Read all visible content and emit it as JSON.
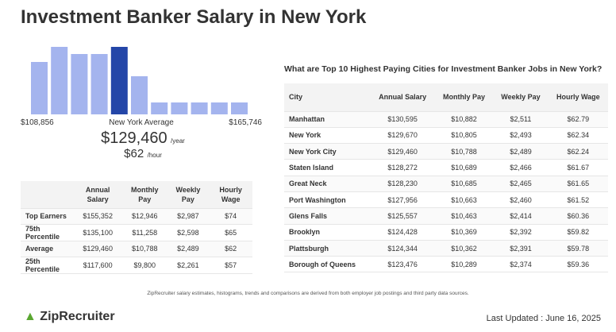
{
  "header": {
    "title": "Investment Banker Salary in New York"
  },
  "histogram": {
    "values": [
      66,
      85,
      76,
      76,
      85,
      48,
      15,
      15,
      15,
      15,
      15
    ],
    "highlight": 4,
    "color": "#a4b4ee",
    "highlight_color": "#2446a8",
    "min_label": "$108,856",
    "average_label": "New York Average",
    "max_label": "$165,746"
  },
  "summary": {
    "yearly": "$129,460",
    "yearly_unit": "/year",
    "hourly": "$62",
    "hourly_unit": "/hour"
  },
  "percentile_table": {
    "columns": [
      "",
      "Annual Salary",
      "Monthly Pay",
      "Weekly Pay",
      "Hourly Wage"
    ],
    "rows": [
      [
        "Top Earners",
        "$155,352",
        "$12,946",
        "$2,987",
        "$74"
      ],
      [
        "75th Percentile",
        "$135,100",
        "$11,258",
        "$2,598",
        "$65"
      ],
      [
        "Average",
        "$129,460",
        "$10,788",
        "$2,489",
        "$62"
      ],
      [
        "25th Percentile",
        "$117,600",
        "$9,800",
        "$2,261",
        "$57"
      ]
    ]
  },
  "cities": {
    "heading": "What are Top 10 Highest Paying Cities for Investment Banker Jobs in New York?",
    "columns": [
      "City",
      "Annual Salary",
      "Monthly Pay",
      "Weekly Pay",
      "Hourly Wage"
    ],
    "rows": [
      [
        "Manhattan",
        "$130,595",
        "$10,882",
        "$2,511",
        "$62.79"
      ],
      [
        "New York",
        "$129,670",
        "$10,805",
        "$2,493",
        "$62.34"
      ],
      [
        "New York City",
        "$129,460",
        "$10,788",
        "$2,489",
        "$62.24"
      ],
      [
        "Staten Island",
        "$128,272",
        "$10,689",
        "$2,466",
        "$61.67"
      ],
      [
        "Great Neck",
        "$128,230",
        "$10,685",
        "$2,465",
        "$61.65"
      ],
      [
        "Port Washington",
        "$127,956",
        "$10,663",
        "$2,460",
        "$61.52"
      ],
      [
        "Glens Falls",
        "$125,557",
        "$10,463",
        "$2,414",
        "$60.36"
      ],
      [
        "Brooklyn",
        "$124,428",
        "$10,369",
        "$2,392",
        "$59.82"
      ],
      [
        "Plattsburgh",
        "$124,344",
        "$10,362",
        "$2,391",
        "$59.78"
      ],
      [
        "Borough of Queens",
        "$123,476",
        "$10,289",
        "$2,374",
        "$59.36"
      ]
    ]
  },
  "footer": {
    "note": "ZipRecruiter salary estimates, histograms, trends and comparisons are derived from both employer job postings and third party data sources.",
    "logo": "ZipRecruiter",
    "updated": "Last Updated : June 16, 2025"
  }
}
